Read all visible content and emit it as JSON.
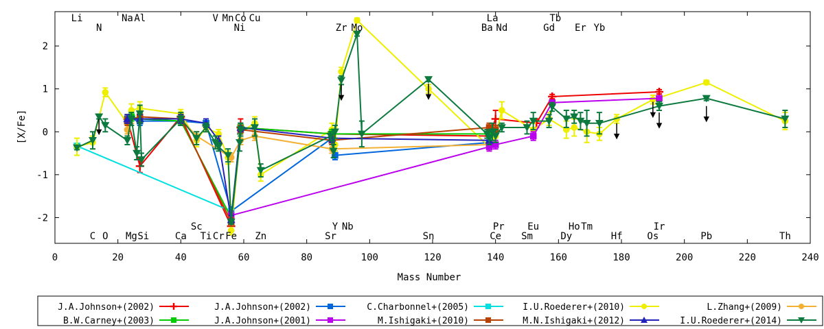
{
  "chart_data": {
    "type": "scatter",
    "title": "",
    "xlabel": "Mass Number",
    "ylabel": "[X/Fe]",
    "xlim": [
      0,
      240
    ],
    "ylim": [
      -2.6,
      2.8
    ],
    "xticks": [
      0,
      20,
      40,
      60,
      80,
      100,
      120,
      140,
      160,
      180,
      200,
      220,
      240
    ],
    "yticks": [
      -2,
      -1,
      0,
      1,
      2
    ],
    "grid": false,
    "legend_position": "bottom",
    "top_elements": [
      {
        "label": "Li",
        "mass": 7,
        "row": 0
      },
      {
        "label": "N",
        "mass": 14,
        "row": 1
      },
      {
        "label": "Na",
        "mass": 23,
        "row": 0
      },
      {
        "label": "Al",
        "mass": 27,
        "row": 0
      },
      {
        "label": "V",
        "mass": 51,
        "row": 0
      },
      {
        "label": "Mn",
        "mass": 55,
        "row": 0
      },
      {
        "label": "Co",
        "mass": 59,
        "row": 0
      },
      {
        "label": "Ni",
        "mass": 58.7,
        "row": 1
      },
      {
        "label": "Cu",
        "mass": 63.5,
        "row": 0
      },
      {
        "label": "Zr",
        "mass": 91,
        "row": 1
      },
      {
        "label": "Mo",
        "mass": 96,
        "row": 1
      },
      {
        "label": "La",
        "mass": 139,
        "row": 0
      },
      {
        "label": "Ba",
        "mass": 137.3,
        "row": 1
      },
      {
        "label": "Nd",
        "mass": 142,
        "row": 1
      },
      {
        "label": "Tb",
        "mass": 159,
        "row": 0
      },
      {
        "label": "Gd",
        "mass": 157,
        "row": 1
      },
      {
        "label": "Er",
        "mass": 167,
        "row": 1
      },
      {
        "label": "Yb",
        "mass": 173,
        "row": 1
      }
    ],
    "bottom_elements": [
      {
        "label": "Sc",
        "mass": 45,
        "row": 0
      },
      {
        "label": "Y",
        "mass": 89,
        "row": 0
      },
      {
        "label": "Nb",
        "mass": 93,
        "row": 0
      },
      {
        "label": "Pr",
        "mass": 141,
        "row": 0
      },
      {
        "label": "Eu",
        "mass": 152,
        "row": 0
      },
      {
        "label": "Ho",
        "mass": 165,
        "row": 0
      },
      {
        "label": "Tm",
        "mass": 169,
        "row": 0
      },
      {
        "label": "Ir",
        "mass": 192,
        "row": 0
      },
      {
        "label": "C",
        "mass": 12,
        "row": 1
      },
      {
        "label": "O",
        "mass": 16,
        "row": 1
      },
      {
        "label": "Mg",
        "mass": 24.3,
        "row": 1
      },
      {
        "label": "Si",
        "mass": 28.1,
        "row": 1
      },
      {
        "label": "Ca",
        "mass": 40,
        "row": 1
      },
      {
        "label": "Ti",
        "mass": 48,
        "row": 1
      },
      {
        "label": "Cr",
        "mass": 52,
        "row": 1
      },
      {
        "label": "Fe",
        "mass": 56,
        "row": 1
      },
      {
        "label": "Zn",
        "mass": 65.4,
        "row": 1
      },
      {
        "label": "Sr",
        "mass": 87.6,
        "row": 1
      },
      {
        "label": "Sn",
        "mass": 118.7,
        "row": 1
      },
      {
        "label": "Ce",
        "mass": 140,
        "row": 1
      },
      {
        "label": "Sm",
        "mass": 150,
        "row": 1
      },
      {
        "label": "Dy",
        "mass": 162.5,
        "row": 1
      },
      {
        "label": "Hf",
        "mass": 178.5,
        "row": 1
      },
      {
        "label": "Os",
        "mass": 190,
        "row": 1
      },
      {
        "label": "Pb",
        "mass": 207,
        "row": 1
      },
      {
        "label": "Th",
        "mass": 232,
        "row": 1
      }
    ],
    "series": [
      {
        "name": "J.A.Johnson+(2002)",
        "color": "#ee0000",
        "marker": "plus",
        "points": [
          [
            23,
            0.3,
            0.1
          ],
          [
            27,
            -0.8,
            0.15
          ],
          [
            40,
            0.35,
            0.1
          ],
          [
            56,
            -2.2,
            0.1
          ],
          [
            59,
            0.1,
            0.2
          ],
          [
            88,
            -0.05,
            0.1
          ],
          [
            138,
            -0.1,
            0.1
          ],
          [
            140,
            0.3,
            0.2
          ],
          [
            153,
            0.2,
            0.1
          ],
          [
            158,
            0.82,
            0.05
          ],
          [
            192,
            0.93,
            0.05
          ]
        ]
      },
      {
        "name": "J.A.Johnson+(2002)",
        "color": "#0066dd",
        "marker": "square",
        "points": [
          [
            23,
            0.3,
            0.1
          ],
          [
            27,
            0.25,
            0.1
          ],
          [
            40,
            0.25,
            0.1
          ],
          [
            48,
            0.2,
            0.1
          ],
          [
            56,
            -1.85,
            0.1
          ],
          [
            88,
            -0.15,
            0.1
          ],
          [
            89,
            -0.55,
            0.1
          ],
          [
            138,
            -0.25,
            0.1
          ]
        ]
      },
      {
        "name": "C.Charbonnel+(2005)",
        "color": "#00e0e0",
        "marker": "square",
        "points": [
          [
            7,
            -0.33,
            0.05
          ],
          [
            56,
            -1.85,
            0.05
          ]
        ]
      },
      {
        "name": "I.U.Roederer+(2010)",
        "color": "#eeee00",
        "marker": "circle",
        "points": [
          [
            7,
            -0.35,
            0.2
          ],
          [
            12,
            -0.25,
            0.15
          ],
          [
            16,
            0.92,
            0.1
          ],
          [
            23,
            0.2,
            0.2
          ],
          [
            24.3,
            0.5,
            0.15
          ],
          [
            27,
            0.55,
            0.15
          ],
          [
            40,
            0.42,
            0.1
          ],
          [
            45,
            -0.2,
            0.15
          ],
          [
            48,
            0.1,
            0.1
          ],
          [
            52,
            -0.05,
            0.1
          ],
          [
            55,
            -0.6,
            0.15
          ],
          [
            56,
            -2.3,
            0.1
          ],
          [
            59,
            0.0,
            0.15
          ],
          [
            63.5,
            0.2,
            0.15
          ],
          [
            65.4,
            -1.0,
            0.15
          ],
          [
            88,
            0.05,
            0.15
          ],
          [
            89,
            -0.3,
            0.15
          ],
          [
            91,
            1.4,
            0.1
          ],
          [
            96,
            2.6,
            0.05
          ],
          [
            118.7,
            1.0,
            0.1
          ],
          [
            138,
            -0.35,
            0.1
          ],
          [
            140,
            -0.1,
            0.1
          ],
          [
            142,
            0.5,
            0.2
          ],
          [
            152,
            0.05,
            0.15
          ],
          [
            157,
            0.3,
            0.15
          ],
          [
            162.5,
            0.05,
            0.2
          ],
          [
            165,
            0.1,
            0.2
          ],
          [
            169,
            0.0,
            0.25
          ],
          [
            173,
            -0.05,
            0.15
          ],
          [
            178.5,
            0.3,
            0.1
          ],
          [
            190,
            0.75,
            0.1
          ],
          [
            207,
            1.15,
            0.05
          ],
          [
            232,
            0.25,
            0.2
          ]
        ]
      },
      {
        "name": "L.Zhang+(2009)",
        "color": "#f4b032",
        "marker": "circle",
        "points": [
          [
            23,
            0.05,
            0.1
          ],
          [
            24.3,
            0.3,
            0.1
          ],
          [
            40,
            0.3,
            0.1
          ],
          [
            45,
            -0.1,
            0.1
          ],
          [
            56,
            -0.6,
            0.1
          ],
          [
            59,
            -0.2,
            0.1
          ],
          [
            63.5,
            -0.1,
            0.1
          ],
          [
            88,
            -0.4,
            0.1
          ],
          [
            138,
            -0.3,
            0.1
          ]
        ]
      },
      {
        "name": "B.W.Carney+(2003)",
        "color": "#00cc00",
        "marker": "square",
        "points": [
          [
            24.3,
            0.35,
            0.1
          ],
          [
            27,
            0.3,
            0.1
          ],
          [
            40,
            0.25,
            0.1
          ],
          [
            56,
            -2.0,
            0.1
          ],
          [
            59,
            0.1,
            0.1
          ],
          [
            88,
            -0.05,
            0.1
          ],
          [
            138,
            -0.05,
            0.1
          ]
        ]
      },
      {
        "name": "J.A.Johnson+(2001)",
        "color": "#bb00ee",
        "marker": "square",
        "points": [
          [
            56,
            -1.95,
            0.1
          ],
          [
            138,
            -0.35,
            0.1
          ],
          [
            140,
            -0.3,
            0.1
          ],
          [
            152,
            -0.1,
            0.1
          ],
          [
            158,
            0.68,
            0.05
          ],
          [
            192,
            0.78,
            0.05
          ]
        ]
      },
      {
        "name": "M.Ishigaki+(2010)",
        "color": "#b84000",
        "marker": "square",
        "points": [
          [
            23,
            0.25,
            0.1
          ],
          [
            27,
            0.35,
            0.1
          ],
          [
            40,
            0.3,
            0.1
          ],
          [
            56,
            -2.1,
            0.1
          ],
          [
            59,
            0.05,
            0.1
          ],
          [
            88,
            -0.2,
            0.1
          ],
          [
            138,
            0.1,
            0.1
          ],
          [
            140,
            0.05,
            0.1
          ]
        ]
      },
      {
        "name": "M.N.Ishigaki+(2012)",
        "color": "#2222bb",
        "marker": "triangle",
        "points": [
          [
            23,
            0.3,
            0.1
          ],
          [
            27,
            0.3,
            0.1
          ],
          [
            40,
            0.3,
            0.1
          ],
          [
            48,
            0.2,
            0.1
          ],
          [
            52,
            -0.2,
            0.1
          ],
          [
            56,
            -2.05,
            0.1
          ],
          [
            59,
            0.1,
            0.1
          ],
          [
            88,
            -0.15,
            0.1
          ],
          [
            138,
            -0.2,
            0.1
          ]
        ]
      },
      {
        "name": "I.U.Roederer+(2014)",
        "color": "#0c7a3e",
        "marker": "triangle-down",
        "points": [
          [
            7,
            -0.37,
            0.05
          ],
          [
            12,
            -0.2,
            0.2
          ],
          [
            14,
            0.35,
            0.05
          ],
          [
            16,
            0.15,
            0.15
          ],
          [
            23,
            -0.2,
            0.1
          ],
          [
            24.3,
            0.3,
            0.15
          ],
          [
            26,
            -0.5,
            0.15
          ],
          [
            27,
            0.42,
            0.2
          ],
          [
            27.5,
            -0.65,
            0.15
          ],
          [
            40,
            0.3,
            0.15
          ],
          [
            45,
            -0.15,
            0.15
          ],
          [
            48,
            0.1,
            0.1
          ],
          [
            51,
            -0.25,
            0.15
          ],
          [
            52,
            -0.35,
            0.1
          ],
          [
            55,
            -0.55,
            0.15
          ],
          [
            56,
            -2.1,
            0.05
          ],
          [
            58.7,
            -0.25,
            0.2
          ],
          [
            59,
            0.05,
            0.15
          ],
          [
            63.5,
            0.1,
            0.2
          ],
          [
            65.4,
            -0.9,
            0.15
          ],
          [
            87.6,
            -0.1,
            0.1
          ],
          [
            88.5,
            -0.45,
            0.15
          ],
          [
            89,
            0.0,
            0.15
          ],
          [
            91,
            1.2,
            0.1
          ],
          [
            96,
            2.28,
            0.05
          ],
          [
            97.5,
            -0.05,
            0.3
          ],
          [
            118.7,
            1.22,
            0.05
          ],
          [
            137.3,
            -0.05,
            0.1
          ],
          [
            138,
            -0.15,
            0.15
          ],
          [
            139,
            0.0,
            0.2
          ],
          [
            140,
            -0.1,
            0.15
          ],
          [
            142,
            0.1,
            0.1
          ],
          [
            150,
            0.1,
            0.15
          ],
          [
            152,
            0.25,
            0.2
          ],
          [
            157,
            0.25,
            0.15
          ],
          [
            158,
            0.58,
            0.1
          ],
          [
            162.5,
            0.3,
            0.2
          ],
          [
            165,
            0.35,
            0.15
          ],
          [
            167,
            0.25,
            0.2
          ],
          [
            169,
            0.2,
            0.3
          ],
          [
            173,
            0.2,
            0.25
          ],
          [
            192,
            0.6,
            0.1
          ],
          [
            207,
            0.78,
            0.05
          ],
          [
            232,
            0.3,
            0.2
          ]
        ]
      }
    ],
    "upper_limits": [
      [
        14,
        0.3
      ],
      [
        91,
        1.1
      ],
      [
        118.7,
        1.12
      ],
      [
        178.5,
        0.2
      ],
      [
        190,
        0.7
      ],
      [
        192,
        0.45
      ],
      [
        207,
        0.6
      ]
    ]
  }
}
